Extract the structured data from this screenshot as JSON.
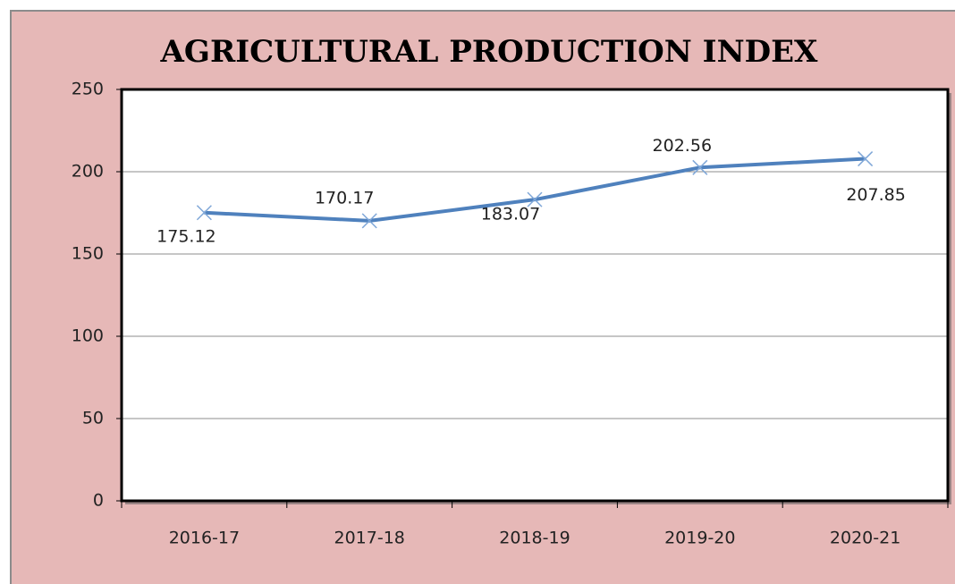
{
  "chart_data": {
    "type": "line",
    "title": "AGRICULTURAL PRODUCTION INDEX",
    "categories": [
      "2016-17",
      "2017-18",
      "2018-19",
      "2019-20",
      "2020-21"
    ],
    "series": [
      {
        "name": "Agricultural Production Index",
        "color": "#4f81bd",
        "values": [
          175.12,
          170.17,
          183.07,
          202.56,
          207.85
        ]
      }
    ],
    "ylim": [
      0,
      250
    ],
    "yticks": [
      0,
      50,
      100,
      150,
      200,
      250
    ],
    "grid": true,
    "legend": false
  }
}
